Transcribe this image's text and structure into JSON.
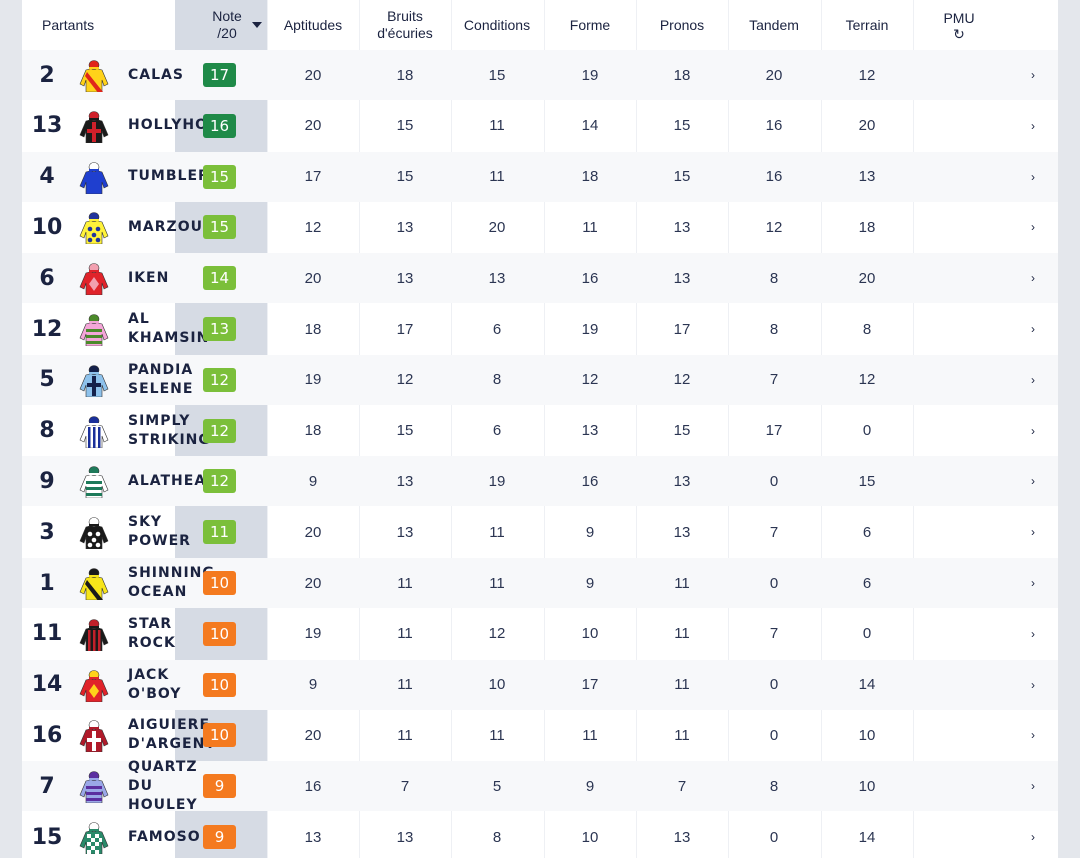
{
  "header": {
    "partants": "Partants",
    "note_line1": "Note",
    "note_line2": "/20",
    "criteria": [
      {
        "line1": "Aptitudes",
        "line2": ""
      },
      {
        "line1": "Bruits",
        "line2": "d'écuries"
      },
      {
        "line1": "Conditions",
        "line2": ""
      },
      {
        "line1": "Forme",
        "line2": ""
      },
      {
        "line1": "Pronos",
        "line2": ""
      },
      {
        "line1": "Tandem",
        "line2": ""
      },
      {
        "line1": "Terrain",
        "line2": ""
      },
      {
        "line1": "PMU",
        "line2": "↻"
      }
    ]
  },
  "colors": {
    "green_dark": "#1f8a48",
    "green_light": "#7bbf3a",
    "orange": "#f47a1f"
  },
  "rows": [
    {
      "num": "2",
      "name": "CALAS",
      "note": "17",
      "level": "green_dark",
      "silk": {
        "body": "#ffd21a",
        "accent": "#e0251b",
        "pattern": "sash"
      },
      "values": [
        "20",
        "18",
        "15",
        "19",
        "18",
        "20",
        "12"
      ]
    },
    {
      "num": "13",
      "name": "HOLLYHOC",
      "note": "16",
      "level": "green_dark",
      "silk": {
        "body": "#1a1a1a",
        "accent": "#d0202a",
        "pattern": "cross"
      },
      "values": [
        "20",
        "15",
        "11",
        "14",
        "15",
        "16",
        "20"
      ]
    },
    {
      "num": "4",
      "name": "TUMBLER",
      "note": "15",
      "level": "green_light",
      "silk": {
        "body": "#1f3fcf",
        "accent": "#ffffff",
        "pattern": "plain"
      },
      "values": [
        "17",
        "15",
        "11",
        "18",
        "15",
        "16",
        "13"
      ]
    },
    {
      "num": "10",
      "name": "MARZOUK",
      "note": "15",
      "level": "green_light",
      "silk": {
        "body": "#fff23a",
        "accent": "#22349b",
        "pattern": "dots"
      },
      "values": [
        "12",
        "13",
        "20",
        "11",
        "13",
        "12",
        "18"
      ]
    },
    {
      "num": "6",
      "name": "IKEN",
      "note": "14",
      "level": "green_light",
      "silk": {
        "body": "#e0232a",
        "accent": "#f2a0b0",
        "pattern": "diamond"
      },
      "values": [
        "20",
        "13",
        "13",
        "16",
        "13",
        "8",
        "20"
      ]
    },
    {
      "num": "12",
      "name": "AL KHAMSIN",
      "note": "13",
      "level": "green_light",
      "silk": {
        "body": "#f4a6d8",
        "accent": "#4b8a2a",
        "pattern": "hoops"
      },
      "values": [
        "18",
        "17",
        "6",
        "19",
        "17",
        "8",
        "8"
      ]
    },
    {
      "num": "5",
      "name": "PANDIA SELENE",
      "note": "12",
      "level": "green_light",
      "silk": {
        "body": "#8ec2ec",
        "accent": "#14204a",
        "pattern": "cross"
      },
      "values": [
        "19",
        "12",
        "8",
        "12",
        "12",
        "7",
        "12"
      ]
    },
    {
      "num": "8",
      "name": "SIMPLY STRIKING",
      "note": "12",
      "level": "green_light",
      "silk": {
        "body": "#ffffff",
        "accent": "#1a2f9a",
        "pattern": "stripes"
      },
      "values": [
        "18",
        "15",
        "6",
        "13",
        "15",
        "17",
        "0"
      ]
    },
    {
      "num": "9",
      "name": "ALATHEA",
      "note": "12",
      "level": "green_light",
      "silk": {
        "body": "#ffffff",
        "accent": "#1e7a5a",
        "pattern": "hoops"
      },
      "values": [
        "9",
        "13",
        "19",
        "16",
        "13",
        "0",
        "15"
      ]
    },
    {
      "num": "3",
      "name": "SKY POWER",
      "note": "11",
      "level": "green_light",
      "silk": {
        "body": "#1a1a1a",
        "accent": "#ffffff",
        "pattern": "dots"
      },
      "values": [
        "20",
        "13",
        "11",
        "9",
        "13",
        "7",
        "6"
      ]
    },
    {
      "num": "1",
      "name": "SHINNING OCEAN",
      "note": "10",
      "level": "orange",
      "silk": {
        "body": "#f7e51a",
        "accent": "#1a1a1a",
        "pattern": "sash"
      },
      "values": [
        "20",
        "11",
        "11",
        "9",
        "11",
        "0",
        "6"
      ]
    },
    {
      "num": "11",
      "name": "STAR ROCK",
      "note": "10",
      "level": "orange",
      "silk": {
        "body": "#1a1a1a",
        "accent": "#c0202a",
        "pattern": "stripes"
      },
      "values": [
        "19",
        "11",
        "12",
        "10",
        "11",
        "7",
        "0"
      ]
    },
    {
      "num": "14",
      "name": "JACK O'BOY",
      "note": "10",
      "level": "orange",
      "silk": {
        "body": "#e0232a",
        "accent": "#ffd21a",
        "pattern": "diamond"
      },
      "values": [
        "9",
        "11",
        "10",
        "17",
        "11",
        "0",
        "14"
      ]
    },
    {
      "num": "16",
      "name": "AIGUIERE D'ARGENT",
      "note": "10",
      "level": "orange",
      "silk": {
        "body": "#b01a2a",
        "accent": "#ffffff",
        "pattern": "cross"
      },
      "values": [
        "20",
        "11",
        "11",
        "11",
        "11",
        "0",
        "10"
      ]
    },
    {
      "num": "7",
      "name": "QUARTZ DU HOULEY",
      "note": "9",
      "level": "orange",
      "silk": {
        "body": "#9aa8e8",
        "accent": "#5b2fa0",
        "pattern": "hoops"
      },
      "values": [
        "16",
        "7",
        "5",
        "9",
        "7",
        "8",
        "10"
      ]
    },
    {
      "num": "15",
      "name": "FAMOSO",
      "note": "9",
      "level": "orange",
      "silk": {
        "body": "#2a8a6a",
        "accent": "#ffffff",
        "pattern": "checks"
      },
      "values": [
        "13",
        "13",
        "8",
        "10",
        "13",
        "0",
        "14"
      ]
    }
  ]
}
